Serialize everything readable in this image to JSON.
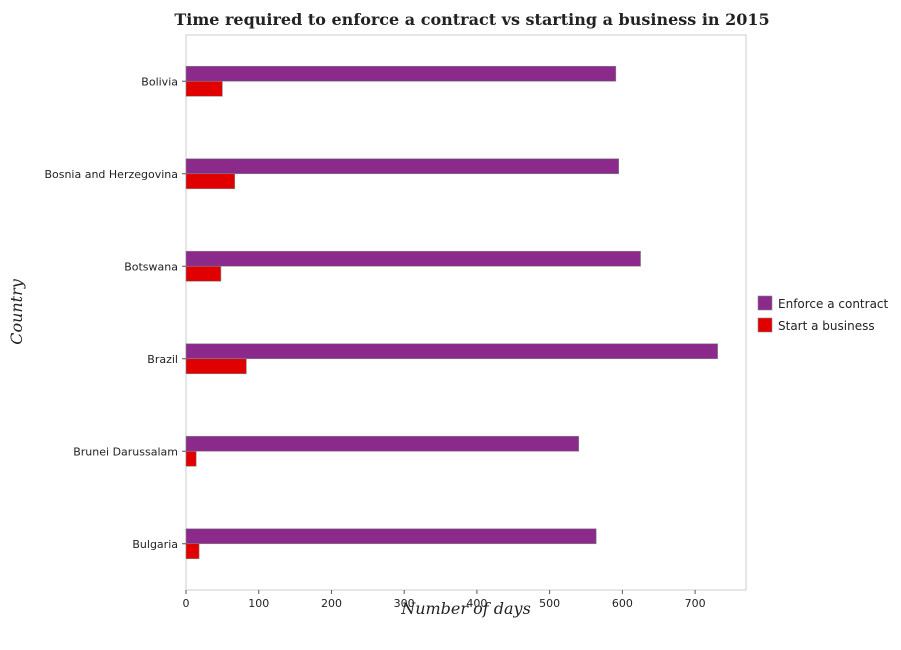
{
  "chart_data": {
    "type": "bar",
    "orientation": "horizontal",
    "title": "Time required to enforce a contract vs starting a business in 2015",
    "xlabel": "Number of days",
    "ylabel": "Country",
    "categories": [
      "Bolivia",
      "Bosnia and Herzegovina",
      "Botswana",
      "Brazil",
      "Brunei Darussalam",
      "Bulgaria"
    ],
    "series": [
      {
        "name": "Enforce a contract",
        "color": "#8b2a8b",
        "values": [
          591,
          595,
          625,
          731,
          540,
          564
        ]
      },
      {
        "name": "Start a business",
        "color": "#e00000",
        "values": [
          50,
          67,
          48,
          83,
          14,
          18
        ]
      }
    ],
    "xlim": [
      0,
      770
    ],
    "xticks": [
      0,
      100,
      200,
      300,
      400,
      500,
      600,
      700
    ],
    "grid": false,
    "legend_position": "right"
  }
}
